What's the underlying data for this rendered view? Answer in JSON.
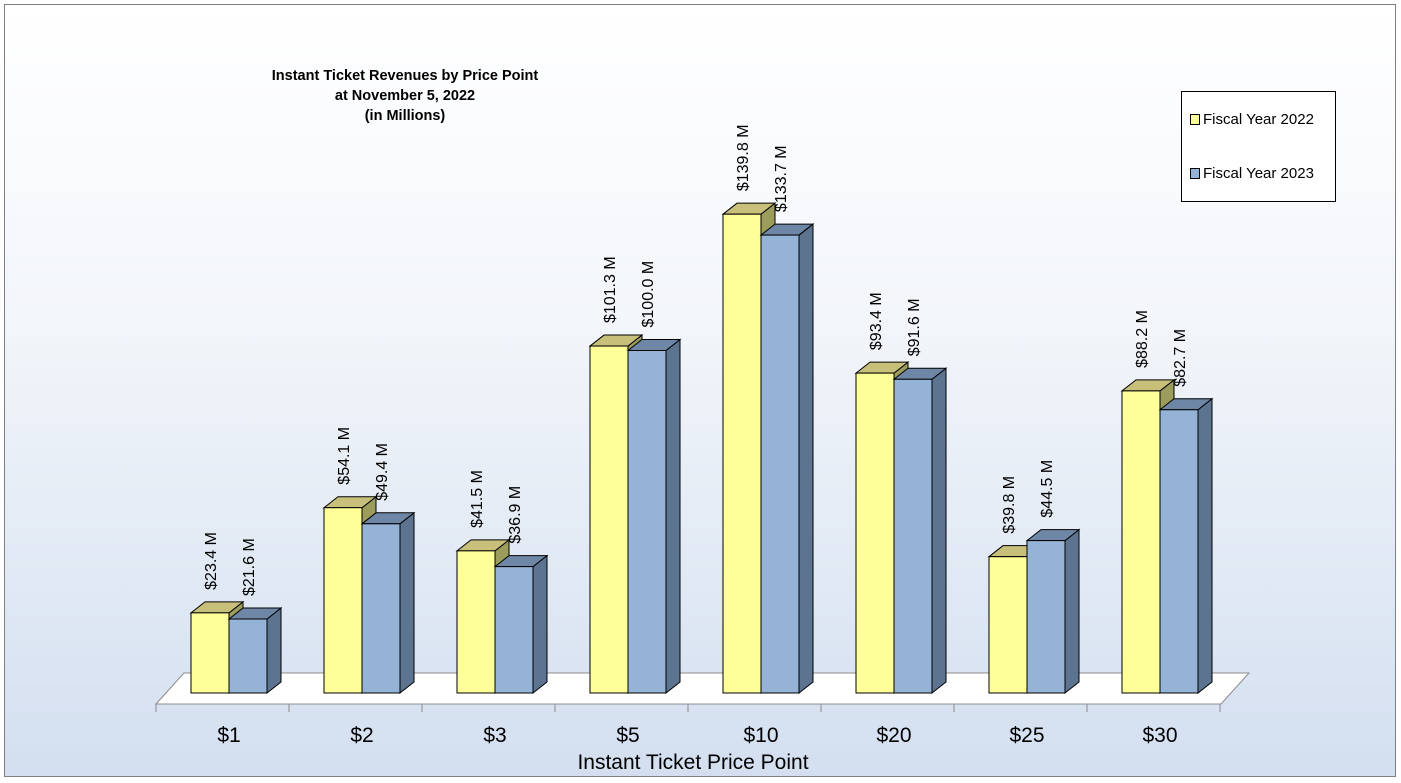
{
  "chart_data": {
    "type": "bar",
    "title": [
      "Instant Ticket Revenues by Price Point",
      "at November 5, 2022",
      "(in Millions)"
    ],
    "xlabel": "Instant Ticket Price Point",
    "ylabel": "",
    "categories": [
      "$1",
      "$2",
      "$3",
      "$5",
      "$10",
      "$20",
      "$25",
      "$30"
    ],
    "series": [
      {
        "name": "Fiscal Year 2022",
        "values": [
          23.4,
          54.1,
          41.5,
          101.3,
          139.8,
          93.4,
          39.8,
          88.2
        ],
        "labels": [
          "$23.4 M",
          "$54.1 M",
          "$41.5 M",
          "$101.3 M",
          "$139.8 M",
          "$93.4 M",
          "$39.8 M",
          "$88.2 M"
        ],
        "color": "#ffff99"
      },
      {
        "name": "Fiscal Year 2023",
        "values": [
          21.6,
          49.4,
          36.9,
          100.0,
          133.7,
          91.6,
          44.5,
          82.7
        ],
        "labels": [
          "$21.6 M",
          "$49.4 M",
          "$36.9 M",
          "$100.0 M",
          "$133.7 M",
          "$91.6 M",
          "$44.5 M",
          "$82.7 M"
        ],
        "color": "#95b3d7"
      }
    ],
    "legend_position": "top-right",
    "style": "3d-clustered-column",
    "grid": false
  }
}
